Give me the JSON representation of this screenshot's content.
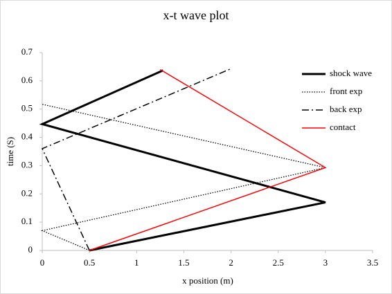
{
  "chart_data": {
    "type": "line",
    "title": "x-t wave plot",
    "x_label": "x position  (m)",
    "y_label": "time  (S)",
    "xlim": [
      0,
      3.5
    ],
    "xticks": [
      0,
      0.5,
      1,
      1.5,
      2,
      2.5,
      3,
      3.5
    ],
    "ylim": [
      0,
      0.7
    ],
    "yticks": [
      0,
      0.1,
      0.2,
      0.3,
      0.4,
      0.5,
      0.6,
      0.7
    ],
    "grid": false,
    "legend": "right",
    "series": [
      {
        "name": "shock wave",
        "color": "#000000",
        "style": "solid",
        "width": 3,
        "x": [
          0.5,
          3,
          0,
          1.28
        ],
        "values": [
          0,
          0.17,
          0.447,
          0.637
        ]
      },
      {
        "name": "front exp",
        "color": "#000000",
        "style": "dotted",
        "width": 1.3,
        "x": [
          0.5,
          0,
          3,
          0
        ],
        "values": [
          0,
          0.07,
          0.293,
          0.517
        ]
      },
      {
        "name": "back exp",
        "color": "#000000",
        "style": "dashdot",
        "width": 1.5,
        "x": [
          0.5,
          0,
          2
        ],
        "values": [
          0,
          0.36,
          0.643
        ]
      },
      {
        "name": "contact",
        "color": "#ff0000",
        "style": "solid",
        "width": 1.5,
        "x": [
          0.5,
          3,
          1.25
        ],
        "values": [
          0,
          0.293,
          0.64
        ]
      }
    ]
  }
}
